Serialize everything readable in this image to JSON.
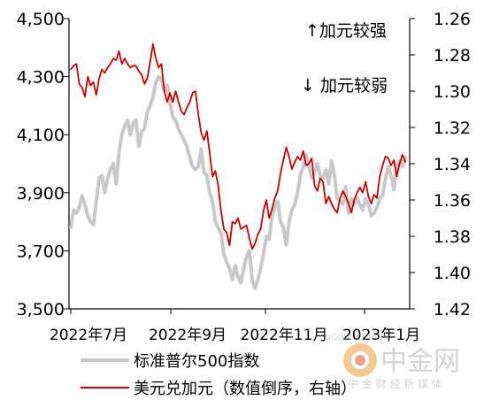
{
  "chart_data": {
    "type": "line",
    "x_labels": [
      "2022年7月",
      "2022年9月",
      "2022年11月",
      "2023年1月"
    ],
    "y_left": {
      "ticks": [
        "3,500",
        "3,700",
        "3,900",
        "4,100",
        "4,300",
        "4,500"
      ],
      "ylim": [
        3500,
        4500
      ]
    },
    "y_right": {
      "ticks": [
        "1.26",
        "1.28",
        "1.30",
        "1.32",
        "1.34",
        "1.36",
        "1.38",
        "1.40",
        "1.42"
      ],
      "ylim": [
        1.26,
        1.42
      ],
      "inverted": true
    },
    "annotations": {
      "up": "↑加元较强",
      "down": "↓ 加元较弱"
    },
    "series": [
      {
        "name": "标准普尔500指数",
        "axis": "left",
        "color": "#c8c8c8",
        "values": [
          3780,
          3840,
          3830,
          3850,
          3890,
          3860,
          3820,
          3800,
          3790,
          3870,
          3950,
          3960,
          3900,
          3950,
          3980,
          4000,
          3930,
          4040,
          4100,
          4130,
          4150,
          4100,
          4140,
          4150,
          4060,
          4110,
          4120,
          4180,
          4200,
          4230,
          4280,
          4300,
          4290,
          4250,
          4270,
          4210,
          4160,
          4150,
          4120,
          4100,
          4080,
          4060,
          4020,
          3990,
          3980,
          3990,
          4050,
          3970,
          3960,
          3900,
          3870,
          3800,
          3780,
          3760,
          3690,
          3660,
          3640,
          3600,
          3650,
          3610,
          3590,
          3640,
          3680,
          3700,
          3600,
          3570,
          3600,
          3640,
          3690,
          3750,
          3740,
          3820,
          3850,
          3870,
          3800,
          3780,
          3720,
          3800,
          3840,
          3860,
          3900,
          3960,
          3990,
          4030,
          3990,
          3950,
          3970,
          4000,
          3960,
          3950,
          3980,
          3930,
          4010,
          3960,
          3880,
          3870,
          3860,
          3920,
          3830,
          3880,
          3860,
          3880,
          3860,
          3840,
          3880,
          3860,
          3820,
          3830,
          3850,
          3880,
          3890,
          3950,
          3990,
          3960,
          3910,
          3990,
          4010,
          3990,
          4020
        ]
      },
      {
        "name": "美元兑加元（数值倒序，右轴）",
        "axis": "right",
        "color": "#d00000",
        "values": [
          1.288,
          1.286,
          1.285,
          1.296,
          1.298,
          1.303,
          1.292,
          1.297,
          1.295,
          1.302,
          1.293,
          1.288,
          1.29,
          1.287,
          1.285,
          1.282,
          1.283,
          1.278,
          1.285,
          1.282,
          1.285,
          1.287,
          1.286,
          1.286,
          1.289,
          1.291,
          1.296,
          1.293,
          1.284,
          1.274,
          1.282,
          1.287,
          1.285,
          1.3,
          1.306,
          1.301,
          1.306,
          1.3,
          1.306,
          1.311,
          1.313,
          1.309,
          1.306,
          1.301,
          1.3,
          1.313,
          1.323,
          1.327,
          1.322,
          1.334,
          1.347,
          1.344,
          1.352,
          1.366,
          1.376,
          1.378,
          1.385,
          1.372,
          1.373,
          1.37,
          1.376,
          1.375,
          1.374,
          1.381,
          1.387,
          1.384,
          1.379,
          1.376,
          1.366,
          1.36,
          1.37,
          1.365,
          1.359,
          1.355,
          1.345,
          1.338,
          1.331,
          1.336,
          1.343,
          1.339,
          1.336,
          1.338,
          1.333,
          1.341,
          1.34,
          1.337,
          1.352,
          1.355,
          1.348,
          1.35,
          1.362,
          1.358,
          1.362,
          1.365,
          1.367,
          1.359,
          1.355,
          1.358,
          1.362,
          1.367,
          1.36,
          1.356,
          1.353,
          1.356,
          1.35,
          1.358,
          1.362,
          1.357,
          1.359,
          1.347,
          1.341,
          1.336,
          1.337,
          1.341,
          1.338,
          1.347,
          1.34,
          1.335,
          1.339
        ]
      }
    ]
  },
  "watermark": {
    "brand": "中金网",
    "domain": "CNGOLD.COM.CN",
    "slogan": "中 金 财 经 新 媒 体"
  }
}
